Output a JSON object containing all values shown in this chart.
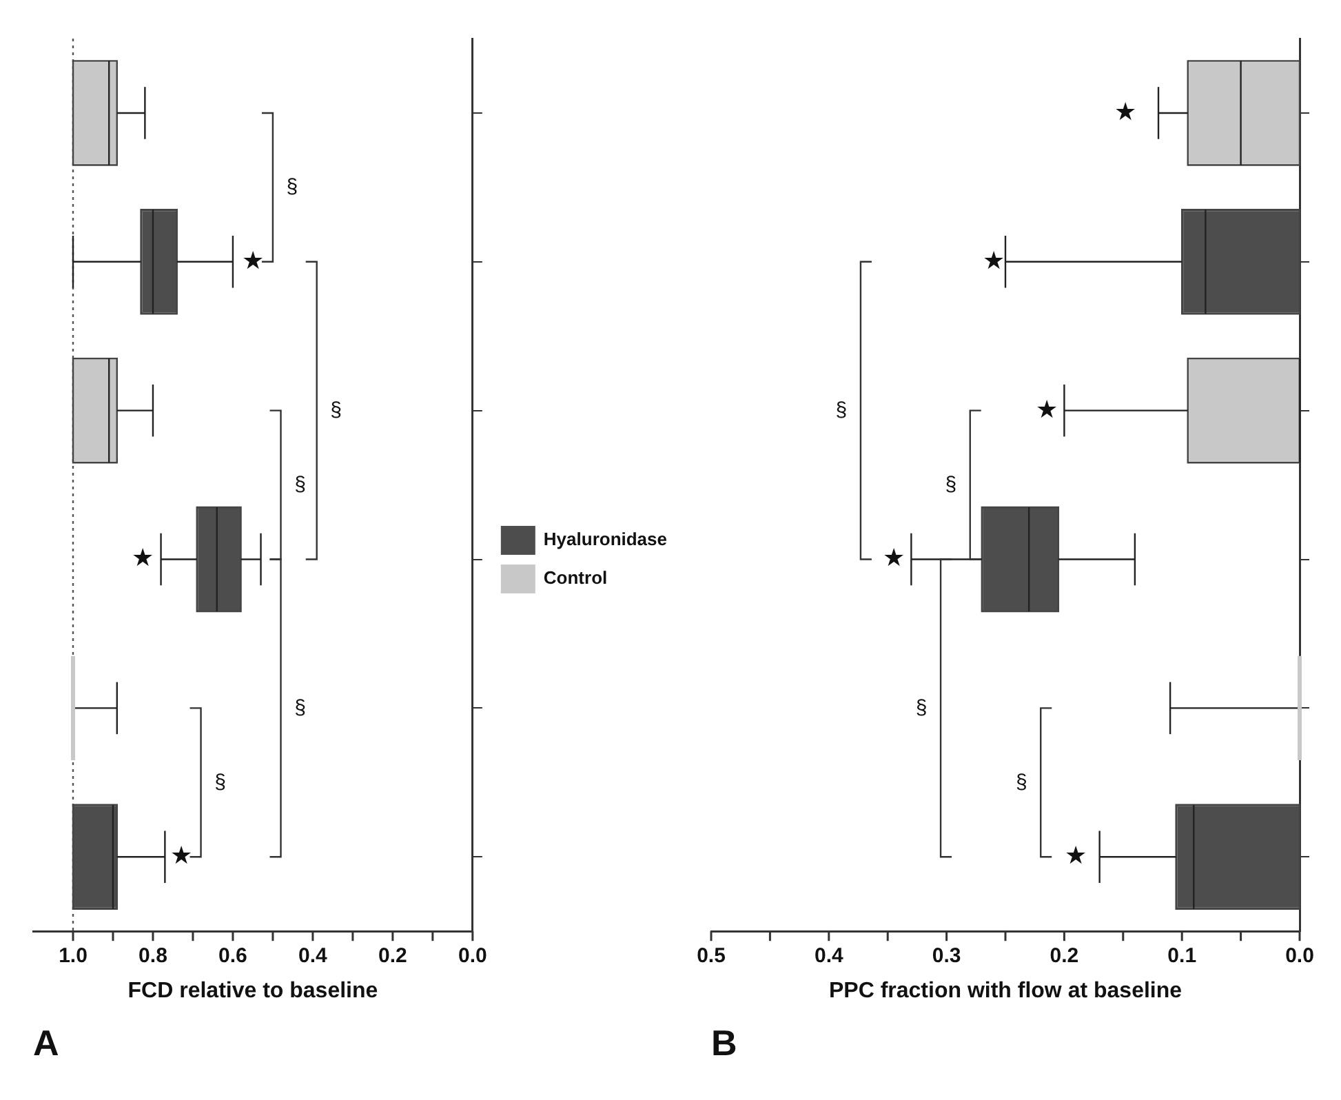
{
  "chart_data": [
    {
      "type": "box",
      "orientation": "horizontal",
      "title": "A",
      "xlabel": "FCD relative to baseline",
      "categories": [
        null,
        null,
        null,
        null,
        null,
        null
      ],
      "series": [
        {
          "name": "Hyaluronidase",
          "color": "#4d4d4d",
          "boxes": [
            null,
            {
              "low": 0.6,
              "q1": 0.74,
              "median": 0.8,
              "q3": 0.83,
              "high": 1.0
            },
            null,
            {
              "low": 0.53,
              "q1": 0.58,
              "median": 0.64,
              "q3": 0.69,
              "high": 0.78
            },
            null,
            {
              "low": 0.77,
              "q1": 0.89,
              "median": 0.9,
              "q3": 1.0,
              "high": 1.0
            }
          ]
        },
        {
          "name": "Control",
          "color": "#c8c8c8",
          "boxes": [
            {
              "low": 0.82,
              "q1": 0.89,
              "median": 0.91,
              "q3": 1.0,
              "high": 1.0
            },
            null,
            {
              "low": 0.8,
              "q1": 0.89,
              "median": 0.91,
              "q3": 1.0,
              "high": 1.0
            },
            null,
            {
              "low": 0.89,
              "q1": 1.0,
              "median": 1.0,
              "q3": 1.0,
              "high": 1.0
            },
            null
          ]
        }
      ],
      "xlim": [
        1.1,
        0.0
      ],
      "xticks": [
        {
          "value": 1.0,
          "label": "1.0"
        },
        {
          "value": 0.9,
          "label": null
        },
        0.8,
        {
          "value": 0.7,
          "label": null
        },
        0.6,
        {
          "value": 0.5,
          "label": null
        },
        0.4,
        {
          "value": 0.3,
          "label": null
        },
        0.2,
        {
          "value": 0.1,
          "label": null
        },
        {
          "value": 0.0,
          "label": "0.0"
        }
      ],
      "ref_lines": [
        {
          "axis": "x",
          "value": 1.0,
          "line_style": "dotted"
        }
      ],
      "legend": "right",
      "annotations": [
        "§",
        "★",
        "§",
        "§",
        "★",
        "§",
        "§",
        "★"
      ]
    },
    {
      "type": "box",
      "orientation": "horizontal",
      "title": "B",
      "xlabel": "PPC fraction with flow at baseline",
      "categories": [
        null,
        null,
        null,
        null,
        null,
        null
      ],
      "series": [
        {
          "color": "#4d4d4d",
          "boxes": [
            null,
            {
              "low": 0.0,
              "q1": 0.0,
              "median": 0.08,
              "q3": 0.1,
              "high": 0.25
            },
            null,
            {
              "low": 0.14,
              "q1": 0.205,
              "median": 0.23,
              "q3": 0.27,
              "high": 0.33
            },
            null,
            {
              "low": 0.0,
              "q1": 0.0,
              "median": 0.09,
              "q3": 0.105,
              "high": 0.17
            }
          ]
        },
        {
          "color": "#c8c8c8",
          "boxes": [
            {
              "low": 0.0,
              "q1": 0.0,
              "median": 0.05,
              "q3": 0.095,
              "high": 0.12
            },
            null,
            {
              "low": 0.0,
              "q1": 0.0,
              "median": 0.0,
              "q3": 0.095,
              "high": 0.2
            },
            null,
            {
              "low": 0.0,
              "q1": 0.0,
              "median": 0.0,
              "q3": 0.0,
              "high": 0.11
            },
            null
          ]
        }
      ],
      "xlim": [
        0.5,
        0.0
      ],
      "xticks": [
        0.5,
        {
          "value": 0.45,
          "label": null
        },
        0.4,
        {
          "value": 0.35,
          "label": null
        },
        0.3,
        {
          "value": 0.25,
          "label": null
        },
        0.2,
        {
          "value": 0.15,
          "label": null
        },
        0.1,
        {
          "value": 0.05,
          "label": null
        },
        {
          "value": 0.0,
          "label": "0.0"
        }
      ],
      "annotations": [
        "★",
        "★",
        "§",
        "★",
        "§",
        "★",
        "§",
        "§",
        "★"
      ]
    }
  ]
}
